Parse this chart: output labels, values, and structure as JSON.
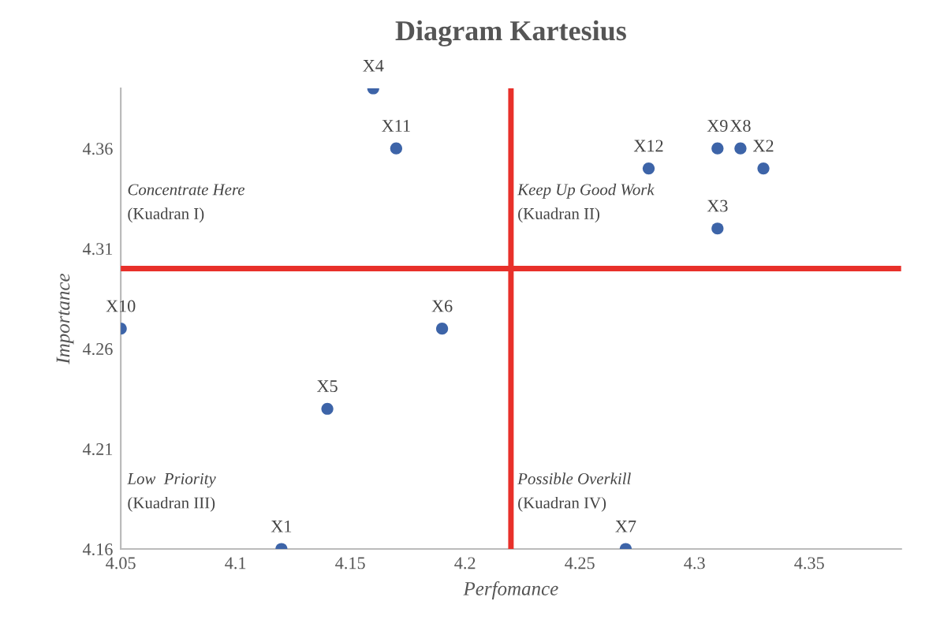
{
  "chart_data": {
    "type": "scatter",
    "title": "Diagram Kartesius",
    "xlabel": "Perfomance",
    "ylabel": "Importance",
    "series": [
      {
        "color": "#3d64a8",
        "x": [
          4.16,
          4.17,
          4.05,
          4.19,
          4.14,
          4.12,
          4.28,
          4.31,
          4.32,
          4.33,
          4.31,
          4.27
        ],
        "values": [
          4.39,
          4.36,
          4.27,
          4.27,
          4.23,
          4.16,
          4.35,
          4.36,
          4.36,
          4.35,
          4.32,
          4.16
        ]
      }
    ],
    "xlim": [
      4.05,
      4.39
    ],
    "xticks": [
      4.05,
      4.1,
      4.15,
      4.2,
      4.25,
      4.3,
      4.35
    ],
    "ylim": [
      4.16,
      4.39
    ],
    "yticks": [
      4.16,
      4.21,
      4.26,
      4.31,
      4.36
    ],
    "marker": "circle",
    "grid": false,
    "ref_lines": [
      {
        "axis": "x",
        "value": 4.22,
        "color": "#e8302a"
      },
      {
        "axis": "y",
        "value": 4.3,
        "color": "#e8302a"
      }
    ],
    "annotations": [
      {
        "text": "X4",
        "x": 4.16,
        "y": 4.39
      },
      {
        "text": "X11",
        "x": 4.17,
        "y": 4.36
      },
      {
        "text": "X10",
        "x": 4.05,
        "y": 4.27
      },
      {
        "text": "X6",
        "x": 4.19,
        "y": 4.27
      },
      {
        "text": "X5",
        "x": 4.14,
        "y": 4.23
      },
      {
        "text": "X1",
        "x": 4.12,
        "y": 4.16
      },
      {
        "text": "X12",
        "x": 4.28,
        "y": 4.35
      },
      {
        "text": "X9",
        "x": 4.31,
        "y": 4.36
      },
      {
        "text": "X8",
        "x": 4.32,
        "y": 4.36
      },
      {
        "text": "X2",
        "x": 4.33,
        "y": 4.35
      },
      {
        "text": "X3",
        "x": 4.31,
        "y": 4.32
      },
      {
        "text": "X7",
        "x": 4.27,
        "y": 4.16
      },
      "Concentrate Here\n(Kuadran I)",
      "Keep Up Good Work\n(Kuadran II)",
      "Low  Priority\n(Kuadran III)",
      "Possible Overkill\n(Kuadran IV)"
    ]
  }
}
